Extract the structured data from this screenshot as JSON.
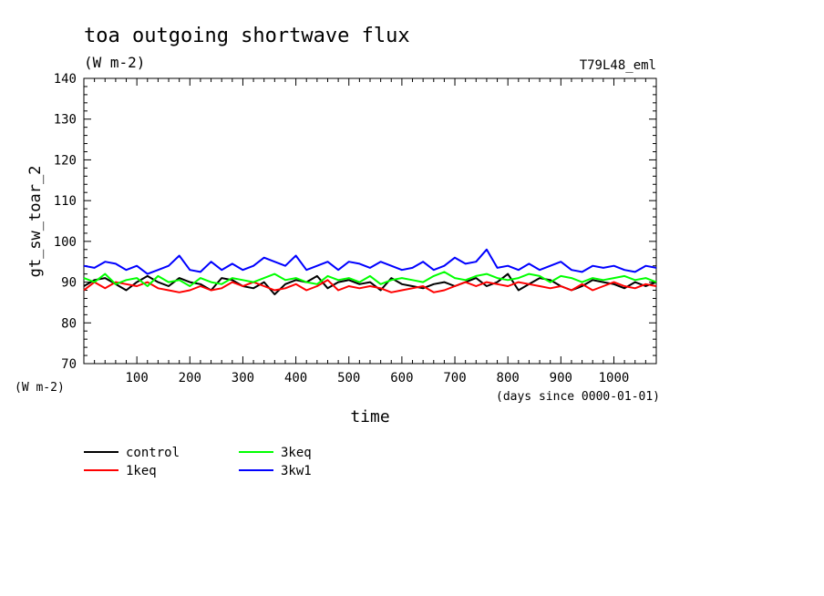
{
  "title": "toa outgoing shortwave flux",
  "units": "(W m-2)",
  "run_label": "T79L48_eml",
  "chart_data": {
    "type": "line",
    "title": "toa outgoing shortwave flux",
    "ylabel": "gt_sw_toar_2",
    "yunit": "(W m-2)",
    "xlabel": "time",
    "xunit": "(days since 0000-01-01)",
    "xlim": [
      0,
      1080
    ],
    "ylim": [
      70,
      140
    ],
    "xticks": [
      100,
      200,
      300,
      400,
      500,
      600,
      700,
      800,
      900,
      1000
    ],
    "yticks": [
      70,
      80,
      90,
      100,
      110,
      120,
      130,
      140
    ],
    "grid": false,
    "legend_position": "below",
    "series": [
      {
        "name": "control",
        "color": "#000000",
        "x": [
          0,
          20,
          40,
          60,
          80,
          100,
          120,
          140,
          160,
          180,
          200,
          220,
          240,
          260,
          280,
          300,
          320,
          340,
          360,
          380,
          400,
          420,
          440,
          460,
          480,
          500,
          520,
          540,
          560,
          580,
          600,
          620,
          640,
          660,
          680,
          700,
          720,
          740,
          760,
          780,
          800,
          820,
          840,
          860,
          880,
          900,
          920,
          940,
          960,
          980,
          1000,
          1020,
          1040,
          1060,
          1080
        ],
        "y": [
          89,
          90.5,
          91,
          89.5,
          88,
          90,
          91.5,
          90,
          89,
          91,
          90,
          89.5,
          88,
          91,
          90.5,
          89,
          88.5,
          90,
          87,
          89.5,
          90.5,
          90,
          91.5,
          88.5,
          90,
          90.5,
          89.5,
          90,
          88,
          91,
          89.5,
          89,
          88.5,
          89.5,
          90,
          89,
          90,
          91,
          89,
          90,
          92,
          88,
          89.5,
          91,
          90.5,
          89,
          88,
          89,
          90.5,
          90,
          89.5,
          88.5,
          90,
          89,
          90
        ]
      },
      {
        "name": "1keq",
        "color": "#ff0000",
        "x": [
          0,
          20,
          40,
          60,
          80,
          100,
          120,
          140,
          160,
          180,
          200,
          220,
          240,
          260,
          280,
          300,
          320,
          340,
          360,
          380,
          400,
          420,
          440,
          460,
          480,
          500,
          520,
          540,
          560,
          580,
          600,
          620,
          640,
          660,
          680,
          700,
          720,
          740,
          760,
          780,
          800,
          820,
          840,
          860,
          880,
          900,
          920,
          940,
          960,
          980,
          1000,
          1020,
          1040,
          1060,
          1080
        ],
        "y": [
          88,
          90,
          88.5,
          90,
          89.5,
          89,
          90,
          88.5,
          88,
          87.5,
          88,
          89,
          88,
          88.5,
          90,
          89,
          90,
          89,
          88,
          88.5,
          89.5,
          88,
          89,
          90.5,
          88,
          89,
          88.5,
          89,
          88.5,
          87.5,
          88,
          88.5,
          89,
          87.5,
          88,
          89,
          90,
          89,
          90,
          89.5,
          89,
          90,
          89.5,
          89,
          88.5,
          89,
          88,
          89.5,
          88,
          89,
          90,
          89,
          88.5,
          89.5,
          89
        ]
      },
      {
        "name": "3keq",
        "color": "#00ff00",
        "x": [
          0,
          20,
          40,
          60,
          80,
          100,
          120,
          140,
          160,
          180,
          200,
          220,
          240,
          260,
          280,
          300,
          320,
          340,
          360,
          380,
          400,
          420,
          440,
          460,
          480,
          500,
          520,
          540,
          560,
          580,
          600,
          620,
          640,
          660,
          680,
          700,
          720,
          740,
          760,
          780,
          800,
          820,
          840,
          860,
          880,
          900,
          920,
          940,
          960,
          980,
          1000,
          1020,
          1040,
          1060,
          1080
        ],
        "y": [
          91,
          90,
          92,
          89.5,
          90.5,
          91,
          89,
          91.5,
          90,
          90.5,
          89,
          91,
          90,
          89.5,
          91,
          90.5,
          90,
          91,
          92,
          90.5,
          91,
          90,
          89.5,
          91.5,
          90.5,
          91,
          90,
          91.5,
          89.5,
          90.5,
          91,
          90.5,
          90,
          91.5,
          92.5,
          91,
          90.5,
          91.5,
          92,
          91,
          90.5,
          91,
          92,
          91.5,
          90,
          91.5,
          91,
          90,
          91,
          90.5,
          91,
          91.5,
          90.5,
          91,
          90
        ]
      },
      {
        "name": "3kw1",
        "color": "#0000ff",
        "x": [
          0,
          20,
          40,
          60,
          80,
          100,
          120,
          140,
          160,
          180,
          200,
          220,
          240,
          260,
          280,
          300,
          320,
          340,
          360,
          380,
          400,
          420,
          440,
          460,
          480,
          500,
          520,
          540,
          560,
          580,
          600,
          620,
          640,
          660,
          680,
          700,
          720,
          740,
          760,
          780,
          800,
          820,
          840,
          860,
          880,
          900,
          920,
          940,
          960,
          980,
          1000,
          1020,
          1040,
          1060,
          1080
        ],
        "y": [
          94,
          93.5,
          95,
          94.5,
          93,
          94,
          92,
          93,
          94,
          96.5,
          93,
          92.5,
          95,
          93,
          94.5,
          93,
          94,
          96,
          95,
          94,
          96.5,
          93,
          94,
          95,
          93,
          95,
          94.5,
          93.5,
          95,
          94,
          93,
          93.5,
          95,
          93,
          94,
          96,
          94.5,
          95,
          98,
          93.5,
          94,
          93,
          94.5,
          93,
          94,
          95,
          93,
          92.5,
          94,
          93.5,
          94,
          93,
          92.5,
          94,
          93.5
        ]
      }
    ]
  }
}
